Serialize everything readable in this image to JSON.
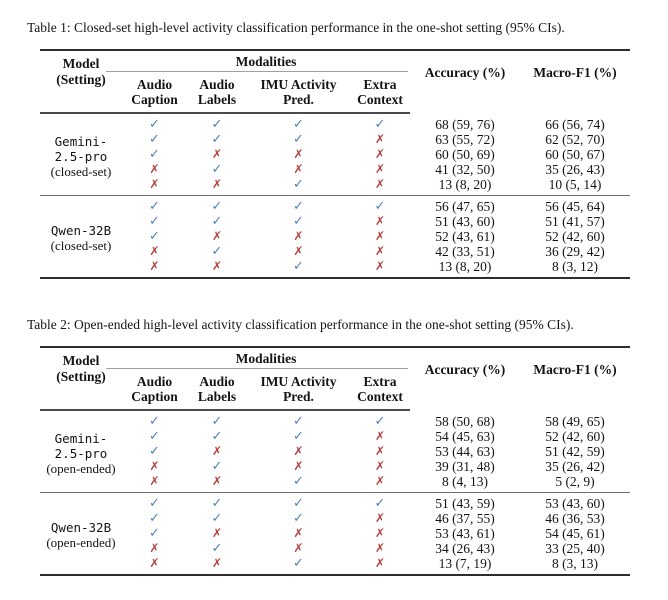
{
  "page": {
    "background": "#ffffff"
  },
  "colors": {
    "check": "#4d7fba",
    "cross": "#b2423d",
    "rule_heavy": "#2e2e2e",
    "rule_mid": "#4a4a4a",
    "rule_group": "#6e6e6e",
    "rule_light": "#a0a0a0"
  },
  "icons": {
    "check_icon": "✓",
    "cross_icon": "✗"
  },
  "header": {
    "model_line1": "Model",
    "model_line2": "(Setting)",
    "modalities": "Modalities",
    "columns": [
      {
        "line1": "Audio",
        "line2": "Caption"
      },
      {
        "line1": "Audio",
        "line2": "Labels"
      },
      {
        "line1": "IMU Activity",
        "line2": "Pred."
      },
      {
        "line1": "Extra",
        "line2": "Context"
      }
    ],
    "accuracy": "Accuracy (%)",
    "macro_f1": "Macro-F1 (%)"
  },
  "tables": [
    {
      "caption": "Table 1: Closed-set high-level activity classification performance in the one-shot setting (95% CIs).",
      "groups": [
        {
          "model_lines": [
            "Gemini-",
            "2.5-pro"
          ],
          "setting": "(closed-set)",
          "rows": [
            {
              "modalities": [
                true,
                true,
                true,
                true
              ],
              "accuracy": "68 (59, 76)",
              "macro_f1": "66 (56, 74)"
            },
            {
              "modalities": [
                true,
                true,
                true,
                false
              ],
              "accuracy": "63 (55, 72)",
              "macro_f1": "62 (52, 70)"
            },
            {
              "modalities": [
                true,
                false,
                false,
                false
              ],
              "accuracy": "60 (50, 69)",
              "macro_f1": "60 (50, 67)"
            },
            {
              "modalities": [
                false,
                true,
                false,
                false
              ],
              "accuracy": "41 (32, 50)",
              "macro_f1": "35 (26, 43)"
            },
            {
              "modalities": [
                false,
                false,
                true,
                false
              ],
              "accuracy": "13 (8, 20)",
              "macro_f1": "10 (5, 14)"
            }
          ]
        },
        {
          "model_lines": [
            "Qwen-32B"
          ],
          "setting": "(closed-set)",
          "rows": [
            {
              "modalities": [
                true,
                true,
                true,
                true
              ],
              "accuracy": "56 (47, 65)",
              "macro_f1": "56 (45, 64)"
            },
            {
              "modalities": [
                true,
                true,
                true,
                false
              ],
              "accuracy": "51 (43, 60)",
              "macro_f1": "51 (41, 57)"
            },
            {
              "modalities": [
                true,
                false,
                false,
                false
              ],
              "accuracy": "52 (43, 61)",
              "macro_f1": "52 (42, 60)"
            },
            {
              "modalities": [
                false,
                true,
                false,
                false
              ],
              "accuracy": "42 (33, 51)",
              "macro_f1": "36 (29, 42)"
            },
            {
              "modalities": [
                false,
                false,
                true,
                false
              ],
              "accuracy": "13 (8, 20)",
              "macro_f1": "8 (3, 12)"
            }
          ]
        }
      ]
    },
    {
      "caption": "Table 2: Open-ended high-level activity classification performance in the one-shot setting (95% CIs).",
      "groups": [
        {
          "model_lines": [
            "Gemini-",
            "2.5-pro"
          ],
          "setting": "(open-ended)",
          "rows": [
            {
              "modalities": [
                true,
                true,
                true,
                true
              ],
              "accuracy": "58 (50, 68)",
              "macro_f1": "58 (49, 65)"
            },
            {
              "modalities": [
                true,
                true,
                true,
                false
              ],
              "accuracy": "54 (45, 63)",
              "macro_f1": "52 (42, 60)"
            },
            {
              "modalities": [
                true,
                false,
                false,
                false
              ],
              "accuracy": "53 (44, 63)",
              "macro_f1": "51 (42, 59)"
            },
            {
              "modalities": [
                false,
                true,
                false,
                false
              ],
              "accuracy": "39 (31, 48)",
              "macro_f1": "35 (26, 42)"
            },
            {
              "modalities": [
                false,
                false,
                true,
                false
              ],
              "accuracy": "8 (4, 13)",
              "macro_f1": "5 (2, 9)"
            }
          ]
        },
        {
          "model_lines": [
            "Qwen-32B"
          ],
          "setting": "(open-ended)",
          "rows": [
            {
              "modalities": [
                true,
                true,
                true,
                true
              ],
              "accuracy": "51 (43, 59)",
              "macro_f1": "53 (43, 60)"
            },
            {
              "modalities": [
                true,
                true,
                true,
                false
              ],
              "accuracy": "46 (37, 55)",
              "macro_f1": "46 (36, 53)"
            },
            {
              "modalities": [
                true,
                false,
                false,
                false
              ],
              "accuracy": "53 (43, 61)",
              "macro_f1": "54 (45, 61)"
            },
            {
              "modalities": [
                false,
                true,
                false,
                false
              ],
              "accuracy": "34 (26, 43)",
              "macro_f1": "33 (25, 40)"
            },
            {
              "modalities": [
                false,
                false,
                true,
                false
              ],
              "accuracy": "13 (7, 19)",
              "macro_f1": "8 (3, 13)"
            }
          ]
        }
      ]
    }
  ]
}
